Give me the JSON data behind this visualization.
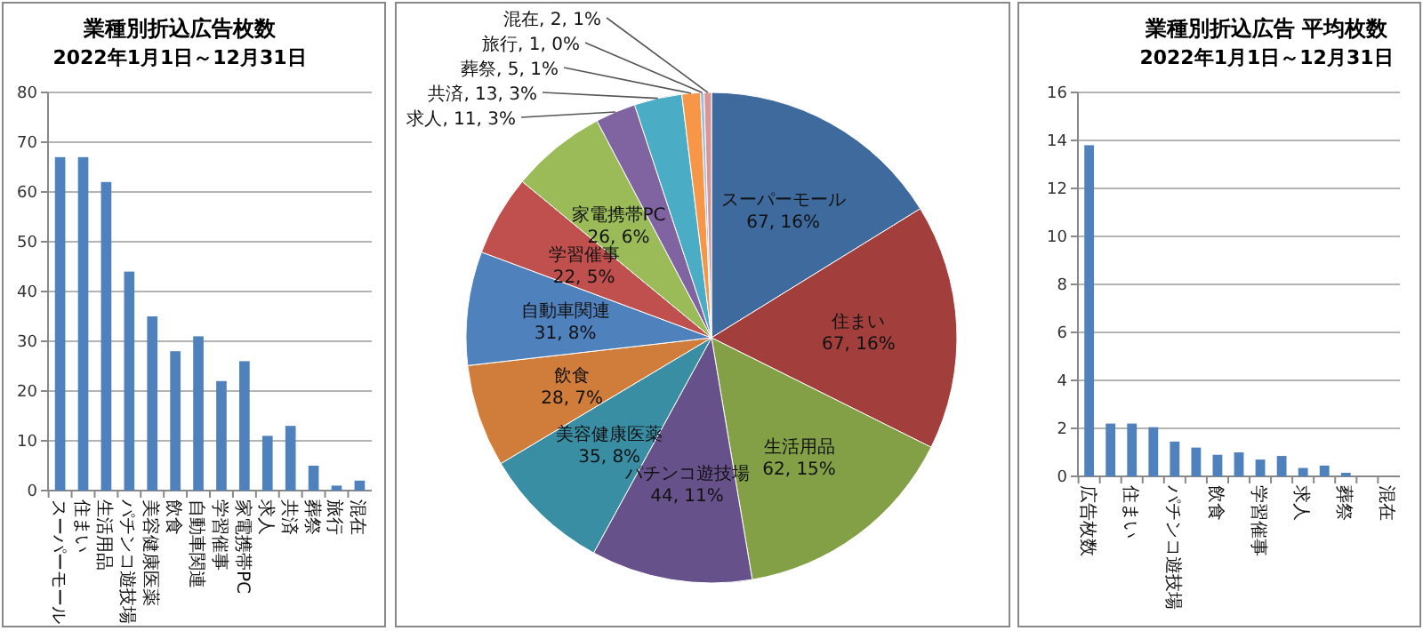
{
  "chart_data": [
    {
      "type": "bar",
      "title": "業種別折込広告枚数",
      "subtitle": "2022年1月1日～12月31日",
      "categories": [
        "スーパーモール",
        "住まい",
        "生活用品",
        "パチンコ遊技場",
        "美容健康医薬",
        "飲食",
        "自動車関連",
        "学習催事",
        "家電携帯PC",
        "求人",
        "共済",
        "葬祭",
        "旅行",
        "混在"
      ],
      "values": [
        67,
        67,
        62,
        44,
        35,
        28,
        31,
        22,
        26,
        11,
        13,
        5,
        1,
        2
      ],
      "color": "#4f81bd",
      "ylim": [
        0,
        80
      ],
      "yticks": [
        0,
        10,
        20,
        30,
        40,
        50,
        60,
        70,
        80
      ],
      "grid": "y"
    },
    {
      "type": "pie",
      "categories": [
        "スーパーモール",
        "住まい",
        "生活用品",
        "パチンコ遊技場",
        "美容健康医薬",
        "飲食",
        "自動車関連",
        "学習催事",
        "家電携帯PC",
        "求人",
        "共済",
        "葬祭",
        "旅行",
        "混在"
      ],
      "values": [
        67,
        67,
        62,
        44,
        35,
        28,
        31,
        22,
        26,
        11,
        13,
        5,
        1,
        2
      ],
      "value_labels": [
        "67, 16%",
        "67, 16%",
        "62, 15%",
        "44, 11%",
        "35, 8%",
        "28, 7%",
        "31, 8%",
        "22, 5%",
        "26, 6%",
        "11, 3%",
        "13, 3%",
        "5, 1%",
        "1, 0%",
        "2, 1%"
      ],
      "colors": [
        "#3f6a9e",
        "#a23f3c",
        "#83a046",
        "#67518a",
        "#3a8ea4",
        "#d07c3a",
        "#4f81bd",
        "#c0504d",
        "#9bbb59",
        "#8064a2",
        "#4bacc6",
        "#f79646",
        "#a4b9dc",
        "#d99694"
      ]
    },
    {
      "type": "bar",
      "title": "業種別折込広告 平均枚数",
      "subtitle": "2022年1月1日～12月31日",
      "categories": [
        "広告枚数",
        null,
        "住まい",
        null,
        "パチンコ遊技場",
        null,
        "飲食",
        null,
        "学習催事",
        null,
        "求人",
        null,
        "葬祭",
        null,
        "混在"
      ],
      "values": [
        13.8,
        2.2,
        2.2,
        2.05,
        1.45,
        1.2,
        0.9,
        1.0,
        0.7,
        0.85,
        0.35,
        0.45,
        0.15,
        null,
        null
      ],
      "color": "#4f81bd",
      "ylim": [
        0,
        16
      ],
      "yticks": [
        0,
        2,
        4,
        6,
        8,
        10,
        12,
        14,
        16
      ],
      "grid": "y"
    }
  ]
}
